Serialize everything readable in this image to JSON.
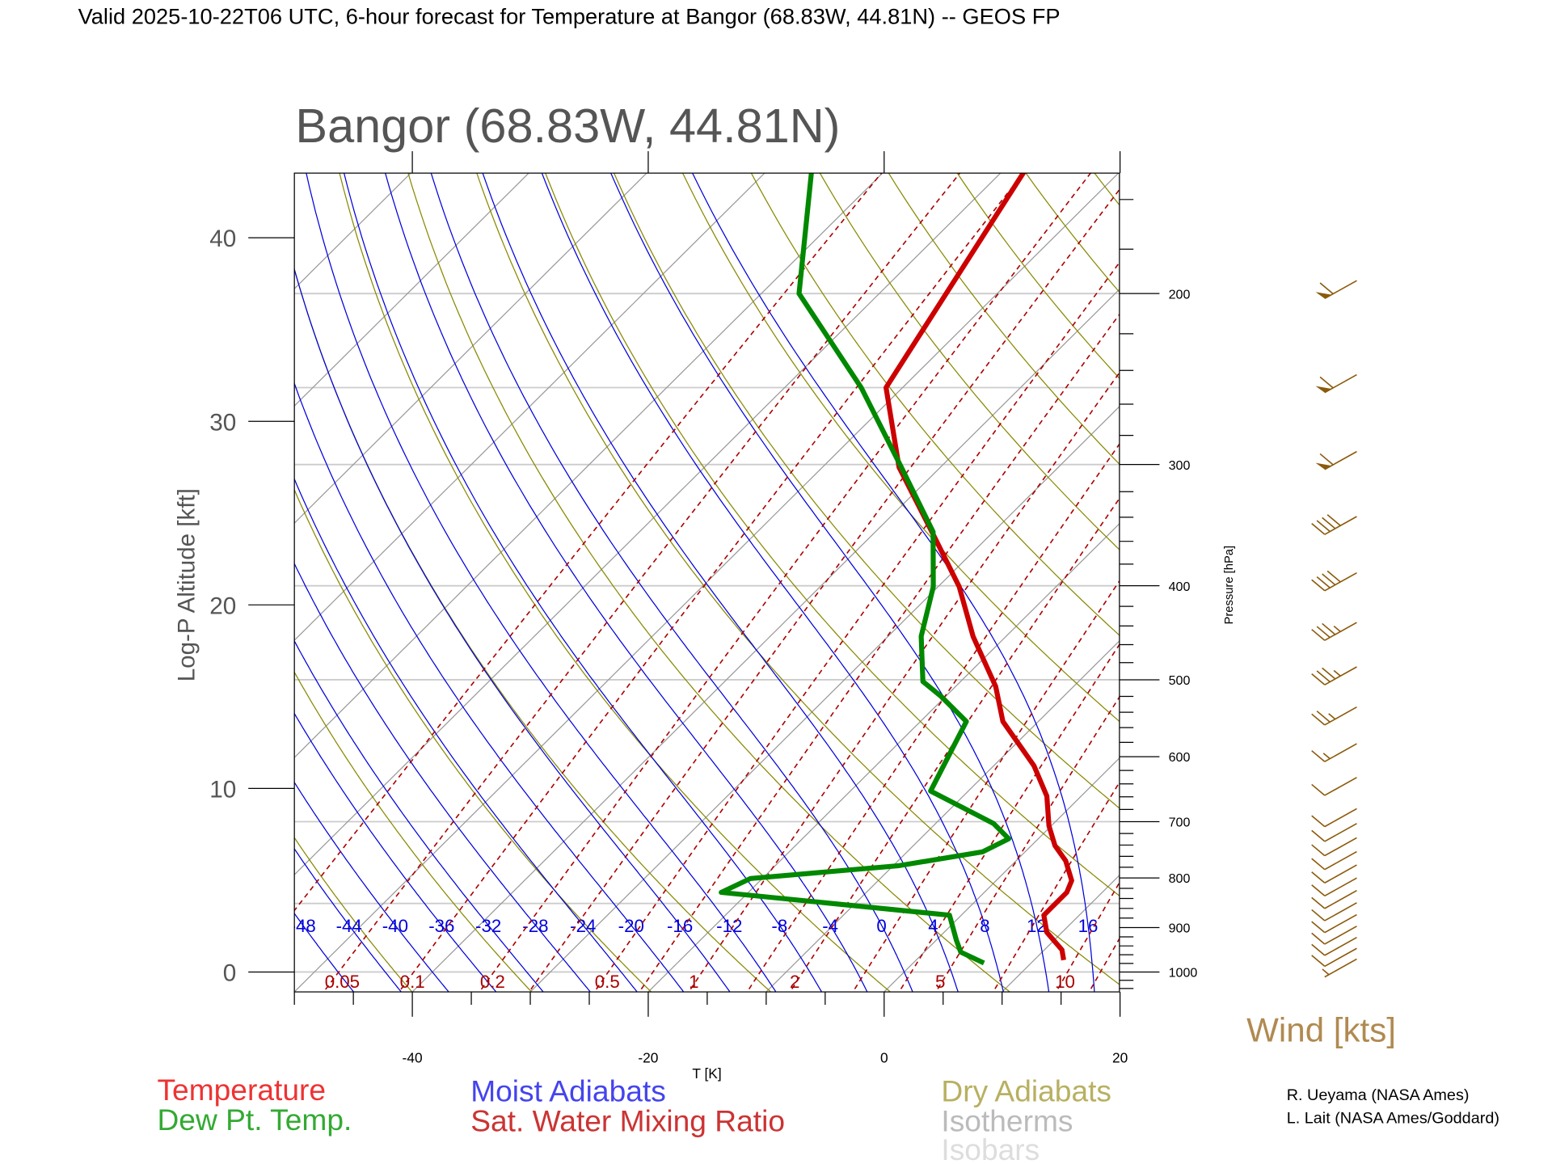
{
  "header": {
    "title": "Valid 2025-10-22T06 UTC, 6-hour forecast for Temperature at Bangor (68.83W, 44.81N) -- GEOS FP"
  },
  "chart_data": {
    "type": "line",
    "subtype": "skew-T log-P diagram",
    "title": "Bangor (68.83W, 44.81N)",
    "xlabel": "T [K]",
    "ylabel_left": "Log-P Altitude [kft]",
    "ylabel_right": "Pressure [hPa]",
    "x_ticks": [
      "-40",
      "-20",
      "0",
      "20"
    ],
    "x_tick_values": [
      -40,
      -20,
      0,
      20
    ],
    "xlim": [
      -50,
      20
    ],
    "y_left_ticks": [
      "0",
      "10",
      "20",
      "30",
      "40"
    ],
    "y_left_values_kft": [
      0,
      10,
      20,
      30,
      40
    ],
    "y_right_ticks": [
      "200",
      "300",
      "400",
      "500",
      "600",
      "700",
      "800",
      "900",
      "1000"
    ],
    "y_right_values_hpa": [
      200,
      300,
      400,
      500,
      600,
      700,
      800,
      900,
      1000
    ],
    "pressure_range_hpa": [
      1048,
      150
    ],
    "isobars_hpa": [
      1000,
      850,
      700,
      500,
      400,
      300,
      250,
      200
    ],
    "isotherms_c": [
      -120,
      -110,
      -100,
      -90,
      -80,
      -70,
      -60,
      -50,
      -40,
      -30,
      -20,
      -10,
      0,
      10,
      20,
      30,
      40
    ],
    "dry_adiabats_k": [
      220,
      230,
      240,
      250,
      260,
      270,
      280,
      290,
      300,
      310,
      320,
      330,
      340,
      350,
      360,
      370,
      380,
      390,
      400,
      410,
      420,
      430,
      440,
      450,
      460
    ],
    "moist_adiabats_c": [
      -48,
      -44,
      -40,
      -36,
      -32,
      -28,
      -24,
      -20,
      -16,
      -12,
      -8,
      -4,
      0,
      4,
      8,
      12,
      16
    ],
    "moist_adiabat_labels": [
      "-48",
      "-44",
      "-40",
      "-36",
      "-32",
      "-28",
      "-24",
      "-20",
      "-16",
      "-12",
      "-8",
      "-4",
      "0",
      "4",
      "8",
      "12",
      "16"
    ],
    "mixing_ratio_lines_gkg": [
      0.02,
      0.05,
      0.1,
      0.2,
      0.3,
      0.5,
      0.7,
      1,
      1.5,
      2,
      3,
      4,
      5,
      7,
      10,
      12,
      16,
      20
    ],
    "mixing_ratio_labels": [
      {
        "value": 0.05,
        "text": "0.05"
      },
      {
        "value": 0.1,
        "text": "0.1"
      },
      {
        "value": 0.2,
        "text": "0.2"
      },
      {
        "value": 0.5,
        "text": "0.5"
      },
      {
        "value": 1,
        "text": "1"
      },
      {
        "value": 2,
        "text": "2"
      },
      {
        "value": 5,
        "text": "5"
      },
      {
        "value": 10,
        "text": "10"
      }
    ],
    "series": [
      {
        "name": "Temperature",
        "color": "#cc0000",
        "pressure_hpa": [
          972,
          949,
          910,
          874,
          828,
          805,
          768,
          741,
          707,
          659,
          613,
          552,
          508,
          451,
          401,
          352,
          302,
          250,
          150
        ],
        "values_c": [
          12.5,
          11.5,
          8.7,
          7.0,
          7.0,
          6.4,
          4.2,
          2.0,
          -0.2,
          -2.9,
          -6.6,
          -13.0,
          -16.6,
          -22.8,
          -28.2,
          -35.2,
          -43.5,
          -51.4,
          -58.1
        ]
      },
      {
        "name": "Dew Pt. Temp.",
        "color": "#008800",
        "pressure_hpa": [
          979,
          954,
          927,
          874,
          828,
          801,
          777,
          752,
          729,
          703,
          651,
          552,
          520,
          502,
          451,
          401,
          352,
          302,
          250,
          200,
          150
        ],
        "values_c": [
          6.0,
          3.1,
          1.7,
          -1.0,
          -22.3,
          -21.0,
          -9.5,
          -3.6,
          -2.5,
          -5.1,
          -13.2,
          -16.1,
          -20.4,
          -23.2,
          -27.2,
          -30.4,
          -35.1,
          -43.3,
          -53.5,
          -66.8,
          -76.1
        ]
      }
    ],
    "wind": {
      "label": "Wind [kts]",
      "barbs": [
        {
          "pressure_hpa": 200,
          "speed_kts": 60
        },
        {
          "pressure_hpa": 250,
          "speed_kts": 60
        },
        {
          "pressure_hpa": 300,
          "speed_kts": 60
        },
        {
          "pressure_hpa": 350,
          "speed_kts": 40
        },
        {
          "pressure_hpa": 400,
          "speed_kts": 40
        },
        {
          "pressure_hpa": 450,
          "speed_kts": 35
        },
        {
          "pressure_hpa": 500,
          "speed_kts": 35
        },
        {
          "pressure_hpa": 550,
          "speed_kts": 25
        },
        {
          "pressure_hpa": 600,
          "speed_kts": 15
        },
        {
          "pressure_hpa": 650,
          "speed_kts": 10
        },
        {
          "pressure_hpa": 700,
          "speed_kts": 10
        },
        {
          "pressure_hpa": 725,
          "speed_kts": 10
        },
        {
          "pressure_hpa": 750,
          "speed_kts": 10
        },
        {
          "pressure_hpa": 775,
          "speed_kts": 10
        },
        {
          "pressure_hpa": 800,
          "speed_kts": 10
        },
        {
          "pressure_hpa": 825,
          "speed_kts": 10
        },
        {
          "pressure_hpa": 850,
          "speed_kts": 10
        },
        {
          "pressure_hpa": 875,
          "speed_kts": 10
        },
        {
          "pressure_hpa": 900,
          "speed_kts": 10
        },
        {
          "pressure_hpa": 925,
          "speed_kts": 10
        },
        {
          "pressure_hpa": 950,
          "speed_kts": 10
        },
        {
          "pressure_hpa": 975,
          "speed_kts": 10
        },
        {
          "pressure_hpa": 1000,
          "speed_kts": 5
        }
      ]
    },
    "legend": {
      "temperature": "Temperature",
      "dewpoint": "Dew Pt. Temp.",
      "moist": "Moist Adiabats",
      "mixing": "Sat. Water Mixing Ratio",
      "dry": "Dry Adiabats",
      "isotherms": "Isotherms",
      "isobars": "Isobars"
    },
    "colors": {
      "temperature": "#cc0000",
      "dewpoint": "#008800",
      "moist": "#0000dd",
      "mixing": "#aa0000",
      "dry": "#888800",
      "isotherm": "#999999",
      "isobar": "#cccccc",
      "wind": "#8b5a0a"
    }
  },
  "credits": [
    "R. Ueyama (NASA Ames)",
    "L. Lait (NASA Ames/Goddard)"
  ]
}
